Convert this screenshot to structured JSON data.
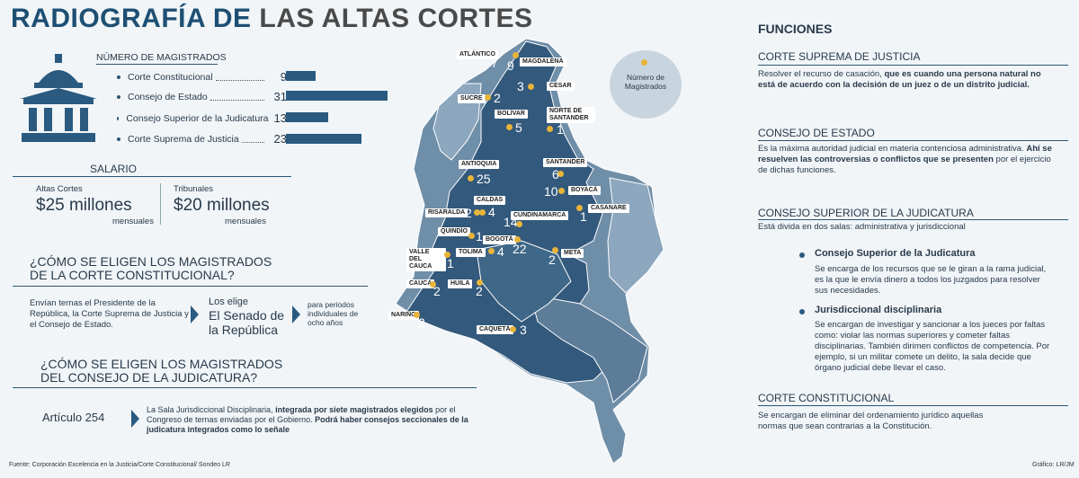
{
  "title": {
    "part1": "RADIOGRAFÍA DE",
    "part2": "LAS ALTAS CORTES"
  },
  "magistrados": {
    "heading": "NÚMERO DE MAGISTRADOS",
    "rows": [
      {
        "label": "Corte Constitucional",
        "value": "9",
        "count": 9
      },
      {
        "label": "Consejo de Estado",
        "value": "31",
        "count": 31
      },
      {
        "label": "Consejo Superior de la Judicatura",
        "value": "13",
        "count": 13
      },
      {
        "label": "Corte Suprema de Justicia",
        "value": "23",
        "count": 23
      }
    ]
  },
  "salario": {
    "heading": "SALARIO",
    "altas": {
      "label": "Altas Cortes",
      "amount": "$25 millones",
      "unit": "mensuales"
    },
    "tribunales": {
      "label": "Tribunales",
      "amount": "$20 millones",
      "unit": "mensuales"
    }
  },
  "q1": {
    "line1": "¿CÓMO SE ELIGEN LOS MAGISTRADOS",
    "line2": "DE LA CORTE CONSTITUCIONAL?",
    "text": "Envían ternas el Presidente de la República, la Corte Suprema de Justicia y el Consejo de Estado.",
    "elige": "Los elige",
    "senado1": "El Senado de",
    "senado2": "la República",
    "periodos": "para periodos individuales de ocho años"
  },
  "q2": {
    "line1": "¿CÓMO SE ELIGEN LOS MAGISTRADOS",
    "line2": "DEL CONSEJO DE LA JUDICATURA?",
    "articulo": "Artículo 254",
    "t1": "La Sala Jurisdiccional Disciplinaria,",
    "t2": "integrada por siete magistrados elegidos",
    "t3": "por el Congreso de ternas enviadas por el Gobierno.",
    "t4": "Podrá haber consejos seccionales de la judicatura integrados como lo señale"
  },
  "fuente": "Fuente: Corporación Excelencia en la Justicia/Corte Constitucional/ Sondeo LR",
  "grafico": "Gráfico: LR/JM",
  "legend": {
    "line1": "Número de",
    "line2": "Magistrados"
  },
  "map": {
    "regions": [
      {
        "name": "ATLÁNTICO",
        "value": "7"
      },
      {
        "name": "MAGDALENA",
        "value": "9"
      },
      {
        "name": "CESAR",
        "value": "3"
      },
      {
        "name": "SUCRE",
        "value": "2"
      },
      {
        "name": "BOLÍVAR",
        "value": "5"
      },
      {
        "name": "NORTE DE SANTANDER",
        "value": "1"
      },
      {
        "name": "ANTIOQUIA",
        "value": "25"
      },
      {
        "name": "SANTANDER",
        "value": "6"
      },
      {
        "name": "BOYACÁ",
        "value": "10"
      },
      {
        "name": "CALDAS",
        "value": "4"
      },
      {
        "name": "RISARALDA",
        "value": "2"
      },
      {
        "name": "CUNDINAMARCA",
        "value": "14"
      },
      {
        "name": "CASANARE",
        "value": "1"
      },
      {
        "name": "QUINDÍO",
        "value": "1"
      },
      {
        "name": "BOGOTÁ",
        "value": "22"
      },
      {
        "name": "TOLIMA",
        "value": "4"
      },
      {
        "name": "VALLE DEL CAUCA",
        "value": "1"
      },
      {
        "name": "META",
        "value": "2"
      },
      {
        "name": "CAUCA",
        "value": "2"
      },
      {
        "name": "HUILA",
        "value": "2"
      },
      {
        "name": "NARIÑO",
        "value": "2"
      },
      {
        "name": "CAQUETÁ",
        "value": "3"
      }
    ]
  },
  "funciones": {
    "heading": "FUNCIONES",
    "suprema": {
      "head": "CORTE SUPREMA DE JUSTICIA",
      "t1": "Resolver el recurso de casación,",
      "t2": "que es cuando una persona natural no está de acuerdo con la decisión de un juez o de un distrito judicial."
    },
    "estado": {
      "head": "CONSEJO DE ESTADO",
      "t1": "Es la máxima autoridad judicial en materia contenciosa administrativa.",
      "t2": "Ahí se resuelven las controversias o conflictos que se presenten",
      "t3": "por el ejercicio de dichas funciones."
    },
    "judicatura": {
      "head": "CONSEJO SUPERIOR DE LA JUDICATURA",
      "sub": "Está divida en dos salas: administrativa y jurisdiccional",
      "csj_title": "Consejo Superior de la Judicatura",
      "csj_text": "Se encarga de los recursos que se le giran a la rama judicial, es la que le envía dinero a todos los juzgados para resolver sus necesidades.",
      "jd_title": "Jurisdiccional disciplinaria",
      "jd_text": "Se encargan de investigar y sancionar a los jueces por faltas como: violar las normas superiores y cometer faltas disciplinarias. También dirimen conflictos de competencia. Por ejemplo, si un militar comete un delito, la sala decide que órgano judicial debe llevar el caso."
    },
    "constitucional": {
      "head": "CORTE CONSTITUCIONAL",
      "text": "Se encargan de eliminar del ordenamiento jurídico aquellas normas que sean contrarias a la Constitución."
    }
  }
}
